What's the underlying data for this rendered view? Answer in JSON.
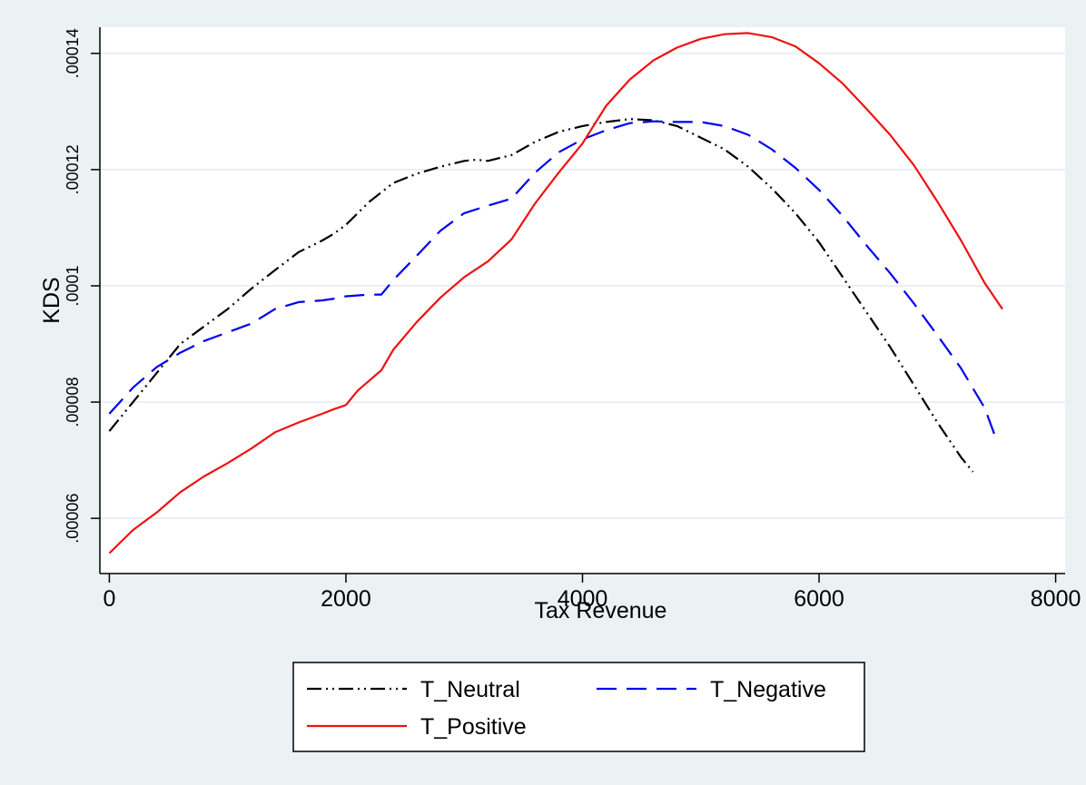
{
  "chart_data": {
    "type": "line",
    "title": "",
    "xlabel": "Tax Revenue",
    "ylabel": "KDS",
    "xlim": [
      -80,
      8080
    ],
    "ylim": [
      5.05e-05,
      0.0001445
    ],
    "x_ticks": [
      0,
      2000,
      4000,
      6000,
      8000
    ],
    "x_tick_labels": [
      "0",
      "2000",
      "4000",
      "6000",
      "8000"
    ],
    "y_ticks": [
      6e-05,
      8e-05,
      0.0001,
      0.00012,
      0.00014
    ],
    "y_tick_labels": [
      ".00006",
      ".00008",
      ".0001",
      ".00012",
      ".00014"
    ],
    "grid": true,
    "legend_position": "bottom",
    "colors": {
      "background": "#eaf2f3",
      "plot_area": "#ffffff",
      "grid": "#e3ecef",
      "neutral": "#000000",
      "negative": "#0000ee",
      "positive": "#ee1111"
    },
    "series": [
      {
        "name": "T_Neutral",
        "style": "dash-dot-dot",
        "x": [
          0,
          200,
          400,
          600,
          800,
          1000,
          1200,
          1400,
          1600,
          1800,
          1900,
          2000,
          2200,
          2400,
          2600,
          2800,
          3000,
          3100,
          3200,
          3400,
          3600,
          3800,
          4000,
          4200,
          4400,
          4600,
          4800,
          5000,
          5200,
          5400,
          5600,
          5800,
          6000,
          6200,
          6400,
          6600,
          6800,
          7000,
          7200,
          7300
        ],
        "values": [
          7.5e-05,
          8e-05,
          8.5e-05,
          9e-05,
          9.3e-05,
          9.6e-05,
          9.95e-05,
          0.0001027,
          0.0001058,
          0.0001078,
          0.000109,
          0.0001105,
          0.0001145,
          0.0001177,
          0.0001193,
          0.0001205,
          0.0001215,
          0.0001217,
          0.0001215,
          0.0001225,
          0.0001248,
          0.0001265,
          0.0001275,
          0.0001282,
          0.0001287,
          0.0001285,
          0.0001275,
          0.0001255,
          0.0001235,
          0.0001205,
          0.0001168,
          0.0001125,
          0.0001075,
          0.0001015,
          9.55e-05,
          8.95e-05,
          8.3e-05,
          7.65e-05,
          7.05e-05,
          6.8e-05
        ]
      },
      {
        "name": "T_Negative",
        "style": "long-dash",
        "x": [
          0,
          200,
          400,
          600,
          800,
          1000,
          1200,
          1400,
          1600,
          1800,
          1900,
          2000,
          2200,
          2300,
          2400,
          2600,
          2800,
          3000,
          3200,
          3400,
          3600,
          3800,
          4000,
          4200,
          4400,
          4600,
          4800,
          5000,
          5200,
          5400,
          5600,
          5800,
          6000,
          6200,
          6400,
          6600,
          6800,
          7000,
          7200,
          7400,
          7500
        ],
        "values": [
          7.8e-05,
          8.25e-05,
          8.6e-05,
          8.85e-05,
          9.05e-05,
          9.2e-05,
          9.35e-05,
          9.6e-05,
          9.72e-05,
          9.75e-05,
          9.78e-05,
          9.82e-05,
          9.85e-05,
          9.85e-05,
          0.000101,
          0.0001052,
          0.0001095,
          0.0001125,
          0.0001138,
          0.000115,
          0.0001195,
          0.000123,
          0.0001252,
          0.0001268,
          0.000128,
          0.0001283,
          0.0001282,
          0.0001282,
          0.0001275,
          0.000126,
          0.0001235,
          0.0001203,
          0.0001165,
          0.000112,
          0.000107,
          0.0001022,
          9.7e-05,
          9.15e-05,
          8.58e-05,
          7.9e-05,
          7.35e-05
        ]
      },
      {
        "name": "T_Positive",
        "style": "solid",
        "x": [
          0,
          200,
          400,
          600,
          800,
          1000,
          1200,
          1400,
          1600,
          1800,
          1900,
          2000,
          2100,
          2300,
          2400,
          2600,
          2800,
          3000,
          3200,
          3400,
          3600,
          3800,
          4000,
          4200,
          4400,
          4600,
          4800,
          5000,
          5200,
          5400,
          5600,
          5800,
          6000,
          6200,
          6400,
          6600,
          6800,
          7000,
          7200,
          7400,
          7550
        ],
        "values": [
          5.4e-05,
          5.8e-05,
          6.1e-05,
          6.45e-05,
          6.72e-05,
          6.95e-05,
          7.2e-05,
          7.48e-05,
          7.65e-05,
          7.8e-05,
          7.88e-05,
          7.95e-05,
          8.2e-05,
          8.55e-05,
          8.9e-05,
          9.38e-05,
          9.8e-05,
          0.0001015,
          0.0001042,
          0.000108,
          0.0001142,
          0.0001195,
          0.0001245,
          0.000131,
          0.0001355,
          0.0001388,
          0.000141,
          0.0001425,
          0.0001433,
          0.0001435,
          0.0001428,
          0.0001412,
          0.0001383,
          0.0001348,
          0.0001305,
          0.000126,
          0.0001208,
          0.0001145,
          0.0001078,
          0.0001005,
          9.6e-05
        ]
      }
    ]
  }
}
